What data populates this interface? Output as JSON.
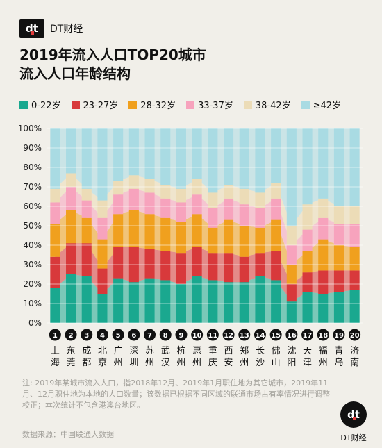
{
  "brand": {
    "name": "DT财经",
    "mark": "dt"
  },
  "title": {
    "line1": "2019年流入人口TOP20城市",
    "line2": "流入人口年龄结构"
  },
  "colors": {
    "s1": "#1aa88f",
    "s2": "#d8393b",
    "s3": "#f0a01e",
    "s4": "#f7a3bd",
    "s5": "#ecdcb7",
    "s6": "#a9dbe3"
  },
  "chart_data": {
    "type": "area",
    "stacked": true,
    "percent": true,
    "categories": [
      "上海",
      "东莞",
      "成都",
      "北京",
      "广州",
      "深圳",
      "苏州",
      "武汉",
      "杭州",
      "惠州",
      "重庆",
      "西安",
      "郑州",
      "长沙",
      "佛山",
      "沈阳",
      "天津",
      "福州",
      "青岛",
      "济南"
    ],
    "ranks": [
      "1",
      "2",
      "3",
      "4",
      "5",
      "6",
      "7",
      "8",
      "9",
      "10",
      "11",
      "12",
      "13",
      "14",
      "15",
      "16",
      "17",
      "18",
      "19",
      "20"
    ],
    "yticks": [
      "0%",
      "10%",
      "20%",
      "30%",
      "40%",
      "50%",
      "60%",
      "70%",
      "80%",
      "90%",
      "100%"
    ],
    "ylim": [
      0,
      100
    ],
    "grid": true,
    "legend_position": "top",
    "series": [
      {
        "name": "0-22岁",
        "values": [
          18,
          25,
          24,
          15,
          23,
          21,
          23,
          22,
          20,
          24,
          22,
          21,
          21,
          24,
          22,
          11,
          16,
          15,
          16,
          17
        ]
      },
      {
        "name": "23-27岁",
        "values": [
          16,
          16,
          17,
          13,
          16,
          18,
          15,
          15,
          16,
          15,
          14,
          15,
          13,
          12,
          15,
          9,
          10,
          12,
          11,
          10
        ]
      },
      {
        "name": "28-32岁",
        "values": [
          17,
          17,
          13,
          15,
          17,
          19,
          18,
          17,
          16,
          17,
          13,
          17,
          16,
          13,
          16,
          10,
          11,
          16,
          13,
          12
        ]
      },
      {
        "name": "33-37岁",
        "values": [
          11,
          12,
          9,
          11,
          10,
          11,
          11,
          10,
          10,
          10,
          10,
          11,
          11,
          10,
          11,
          10,
          11,
          11,
          11,
          12
        ]
      },
      {
        "name": "38-42岁",
        "values": [
          7,
          7,
          6,
          9,
          7,
          7,
          7,
          7,
          7,
          8,
          8,
          7,
          8,
          8,
          8,
          10,
          13,
          10,
          9,
          9
        ]
      },
      {
        "name": "≥42岁",
        "values": [
          31,
          23,
          31,
          37,
          27,
          24,
          26,
          29,
          31,
          26,
          33,
          29,
          31,
          33,
          28,
          50,
          39,
          36,
          40,
          40
        ]
      }
    ]
  },
  "note": "注: 2019年某城市流入人口，指2018年12月、2019年1月职住地为其它城市，2019年11月、12月职住地为本地的人口数量；该数据已根据不同区域的联通市场占有率情况进行调整校正；本次统计不包含港澳台地区。",
  "source": "数据来源：中国联通大数据"
}
